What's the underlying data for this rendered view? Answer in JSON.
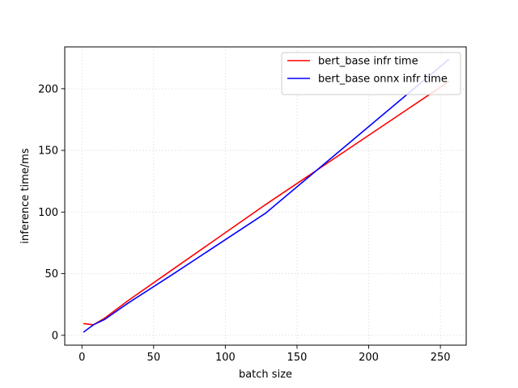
{
  "chart_data": {
    "type": "line",
    "xlabel": "batch size",
    "ylabel": "inference time/ms",
    "xlim": [
      -12,
      268
    ],
    "ylim": [
      -8,
      234
    ],
    "xticks": [
      0,
      50,
      100,
      150,
      200,
      250
    ],
    "yticks": [
      0,
      50,
      100,
      150,
      200
    ],
    "grid": true,
    "legend_position": "top-right",
    "series": [
      {
        "name": "bert_base infr time",
        "color": "#ff0000",
        "x": [
          1,
          8,
          16,
          32,
          64,
          128,
          256
        ],
        "y": [
          9.5,
          8.5,
          14,
          28,
          54,
          106,
          206
        ]
      },
      {
        "name": "bert_base onnx infr time",
        "color": "#0000ff",
        "x": [
          1,
          8,
          16,
          32,
          64,
          128,
          256
        ],
        "y": [
          2.5,
          8.5,
          13,
          26,
          50,
          99,
          224
        ]
      }
    ]
  }
}
